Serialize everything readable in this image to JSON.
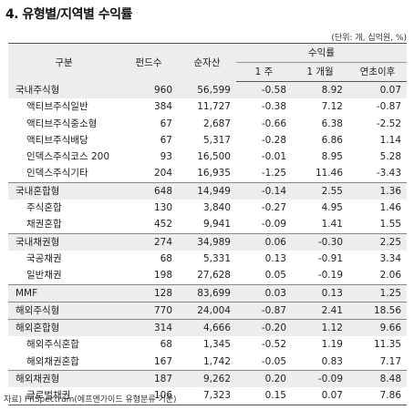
{
  "title": "4. 유형별/지역별 수익률",
  "unit_note": "(단위: 개, 십억원, %)",
  "headers": {
    "category": "구분",
    "fund_count": "펀드수",
    "net_assets": "순자산",
    "returns_group": "수익률",
    "ret_1w": "1 주",
    "ret_1m": "1 개월",
    "ret_ytd": "연초이후"
  },
  "rows": [
    {
      "name": "국내주식형",
      "count": "960",
      "assets": "56,599",
      "w1": "-0.58",
      "m1": "8.92",
      "ytd": "0.07"
    },
    {
      "name": "액티브주식일반",
      "count": "384",
      "assets": "11,727",
      "w1": "-0.38",
      "m1": "7.12",
      "ytd": "-0.87"
    },
    {
      "name": "액티브주식중소형",
      "count": "67",
      "assets": "2,687",
      "w1": "-0.66",
      "m1": "6.38",
      "ytd": "-2.52"
    },
    {
      "name": "액티브주식배당",
      "count": "67",
      "assets": "5,317",
      "w1": "-0.28",
      "m1": "6.86",
      "ytd": "1.14"
    },
    {
      "name": "인덱스주식코스 200",
      "count": "93",
      "assets": "16,500",
      "w1": "-0.01",
      "m1": "8.95",
      "ytd": "5.28"
    },
    {
      "name": "인덱스주식기타",
      "count": "204",
      "assets": "16,935",
      "w1": "-1.25",
      "m1": "11.46",
      "ytd": "-3.43"
    },
    {
      "name": "국내혼합형",
      "count": "648",
      "assets": "14,949",
      "w1": "-0.14",
      "m1": "2.55",
      "ytd": "1.36"
    },
    {
      "name": "주식혼합",
      "count": "130",
      "assets": "3,840",
      "w1": "-0.27",
      "m1": "4.95",
      "ytd": "1.46"
    },
    {
      "name": "채권혼합",
      "count": "452",
      "assets": "9,941",
      "w1": "-0.09",
      "m1": "1.41",
      "ytd": "1.55"
    },
    {
      "name": "국내채권형",
      "count": "274",
      "assets": "34,989",
      "w1": "0.06",
      "m1": "-0.30",
      "ytd": "2.25"
    },
    {
      "name": "국공채권",
      "count": "68",
      "assets": "5,331",
      "w1": "0.13",
      "m1": "-0.91",
      "ytd": "3.34"
    },
    {
      "name": "일반채권",
      "count": "198",
      "assets": "27,628",
      "w1": "0.05",
      "m1": "-0.19",
      "ytd": "2.06"
    },
    {
      "name": "MMF",
      "count": "128",
      "assets": "83,699",
      "w1": "0.03",
      "m1": "0.13",
      "ytd": "1.25"
    },
    {
      "name": "해외주식형",
      "count": "770",
      "assets": "24,004",
      "w1": "-0.87",
      "m1": "2.41",
      "ytd": "18.56"
    },
    {
      "name": "해외혼합형",
      "count": "314",
      "assets": "4,666",
      "w1": "-0.20",
      "m1": "1.12",
      "ytd": "9.66"
    },
    {
      "name": "해외주식혼합",
      "count": "68",
      "assets": "1,345",
      "w1": "-0.52",
      "m1": "1.19",
      "ytd": "11.35"
    },
    {
      "name": "해외채권혼합",
      "count": "167",
      "assets": "1,742",
      "w1": "-0.05",
      "m1": "0.83",
      "ytd": "7.17"
    },
    {
      "name": "해외채권형",
      "count": "187",
      "assets": "9,262",
      "w1": "0.20",
      "m1": "-0.09",
      "ytd": "8.48"
    },
    {
      "name": "글로벌채권",
      "count": "106",
      "assets": "7,323",
      "w1": "0.15",
      "m1": "0.07",
      "ytd": "7.86"
    }
  ],
  "source": "자료) FnSpectrum(에프앤가이드 유형분류 기준)"
}
